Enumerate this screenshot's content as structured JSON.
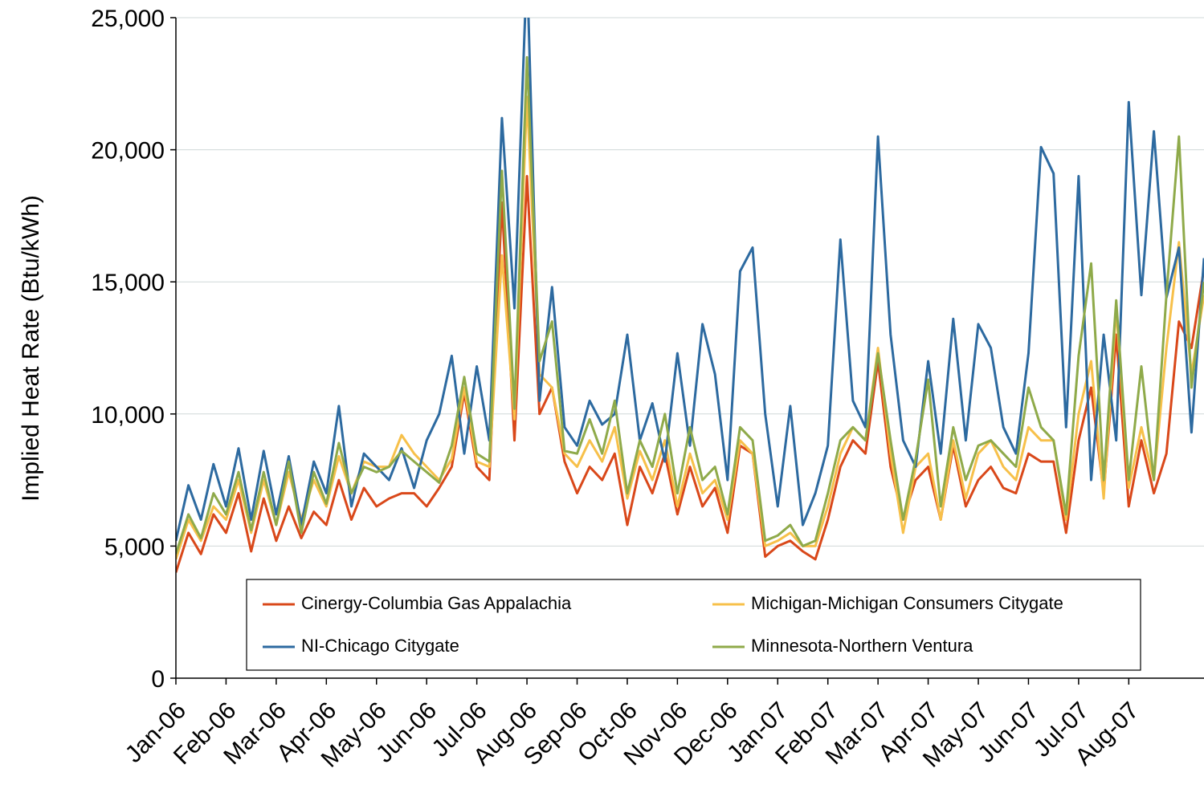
{
  "chart_data": {
    "type": "line",
    "y_label": "Implied Heat Rate (Btu/kWh)",
    "ylim": [
      0,
      25000
    ],
    "yticks": [
      0,
      {
        "value": 5000,
        "label": "5,000"
      },
      {
        "value": 10000,
        "label": "10,000"
      },
      {
        "value": 15000,
        "label": "15,000"
      },
      {
        "value": 20000,
        "label": "20,000"
      },
      {
        "value": 25000,
        "label": "25,000"
      }
    ],
    "grid": true,
    "legend": "bottom",
    "categories": [
      "Jan-06",
      null,
      null,
      null,
      "Feb-06",
      null,
      null,
      null,
      "Mar-06",
      null,
      null,
      null,
      "Apr-06",
      null,
      null,
      null,
      "May-06",
      null,
      null,
      null,
      "Jun-06",
      null,
      null,
      null,
      "Jul-06",
      null,
      null,
      null,
      "Aug-06",
      null,
      null,
      null,
      "Sep-06",
      null,
      null,
      null,
      "Oct-06",
      null,
      null,
      null,
      "Nov-06",
      null,
      null,
      null,
      "Dec-06",
      null,
      null,
      null,
      "Jan-07",
      null,
      null,
      null,
      "Feb-07",
      null,
      null,
      null,
      "Mar-07",
      null,
      null,
      null,
      "Apr-07",
      null,
      null,
      null,
      "May-07",
      null,
      null,
      null,
      "Jun-07",
      null,
      null,
      null,
      "Jul-07",
      null,
      null,
      null,
      "Aug-07",
      null,
      null,
      null,
      null,
      null,
      null
    ],
    "series": [
      {
        "name": "Cinergy-Columbia Gas Appalachia",
        "color": "#d9481a",
        "values": [
          4000,
          5500,
          4700,
          6200,
          5500,
          7000,
          4800,
          6800,
          5200,
          6500,
          5300,
          6300,
          5800,
          7500,
          6000,
          7200,
          6500,
          6800,
          7000,
          7000,
          6500,
          7200,
          8000,
          10800,
          8000,
          7500,
          18000,
          9000,
          19000,
          10000,
          11000,
          8200,
          7000,
          8000,
          7500,
          8500,
          5800,
          8000,
          7000,
          8500,
          6200,
          8000,
          6500,
          7200,
          5500,
          8800,
          8500,
          4600,
          5000,
          5200,
          4800,
          4500,
          6000,
          8000,
          9000,
          8500,
          12000,
          8000,
          6000,
          7500,
          8000,
          6000,
          8800,
          6500,
          7500,
          8000,
          7200,
          7000,
          8500,
          8200,
          8200,
          5500,
          9000,
          11000,
          7000,
          13000,
          6500,
          9000,
          7000,
          8500,
          13500,
          12500,
          15500
        ]
      },
      {
        "name": "Michigan-Michigan Consumers Citygate",
        "color": "#f7c04a",
        "values": [
          4500,
          6000,
          5200,
          6500,
          6000,
          7500,
          5500,
          7500,
          5800,
          7800,
          6000,
          7500,
          6500,
          8400,
          7000,
          8200,
          8000,
          8000,
          9200,
          8500,
          8000,
          7500,
          8300,
          11000,
          8200,
          8000,
          16000,
          9800,
          22000,
          11500,
          11000,
          8500,
          8000,
          9000,
          8200,
          9500,
          6800,
          8600,
          7500,
          9000,
          6500,
          8500,
          7000,
          7500,
          6000,
          9000,
          8500,
          5000,
          5200,
          5500,
          5000,
          5000,
          6500,
          8500,
          9500,
          9000,
          12500,
          8500,
          5500,
          8000,
          8500,
          6000,
          9000,
          6800,
          8500,
          9000,
          8000,
          7500,
          9500,
          9000,
          9000,
          6000,
          10000,
          12000,
          6800,
          14000,
          7200,
          9500,
          7500,
          12500,
          16500,
          11500,
          14500
        ]
      },
      {
        "name": "NI-Chicago Citygate",
        "color": "#2d6aa0",
        "values": [
          5200,
          7300,
          6000,
          8100,
          6500,
          8700,
          6000,
          8600,
          6200,
          8400,
          5800,
          8200,
          7000,
          10300,
          6500,
          8500,
          8000,
          7500,
          8700,
          7200,
          9000,
          10000,
          12200,
          8500,
          11800,
          9000,
          21200,
          14000,
          27000,
          10500,
          14800,
          9500,
          8800,
          10500,
          9600,
          10000,
          13000,
          9000,
          10400,
          8200,
          12300,
          8800,
          13400,
          11500,
          7500,
          15400,
          16300,
          10000,
          6500,
          10300,
          5800,
          7000,
          8800,
          16600,
          10500,
          9500,
          20500,
          13000,
          9000,
          8000,
          12000,
          8500,
          13600,
          9000,
          13400,
          12500,
          9500,
          8500,
          12300,
          20100,
          19100,
          9500,
          19000,
          7500,
          13000,
          9000,
          21800,
          14500,
          20700,
          14400,
          16300,
          9300,
          15900
        ]
      },
      {
        "name": "Minnesota-Northern Ventura",
        "color": "#8faa4a",
        "values": [
          4700,
          6200,
          5300,
          7000,
          6200,
          7800,
          5600,
          7800,
          5800,
          8200,
          5500,
          7800,
          6600,
          8900,
          7000,
          8000,
          7800,
          8000,
          8600,
          8200,
          7800,
          7400,
          8800,
          11400,
          8500,
          8200,
          19200,
          10200,
          23500,
          12000,
          13500,
          8600,
          8500,
          9800,
          8500,
          10500,
          7000,
          9000,
          8000,
          10000,
          7000,
          9500,
          7500,
          8000,
          6200,
          9500,
          9000,
          5200,
          5400,
          5800,
          5000,
          5200,
          7000,
          9000,
          9500,
          9000,
          12300,
          9000,
          6000,
          8300,
          11300,
          6500,
          9500,
          7500,
          8800,
          9000,
          8500,
          8000,
          11000,
          9500,
          9000,
          6200,
          12200,
          15700,
          7500,
          14300,
          7500,
          11800,
          7500,
          14500,
          20500,
          11000,
          15000
        ]
      }
    ]
  }
}
